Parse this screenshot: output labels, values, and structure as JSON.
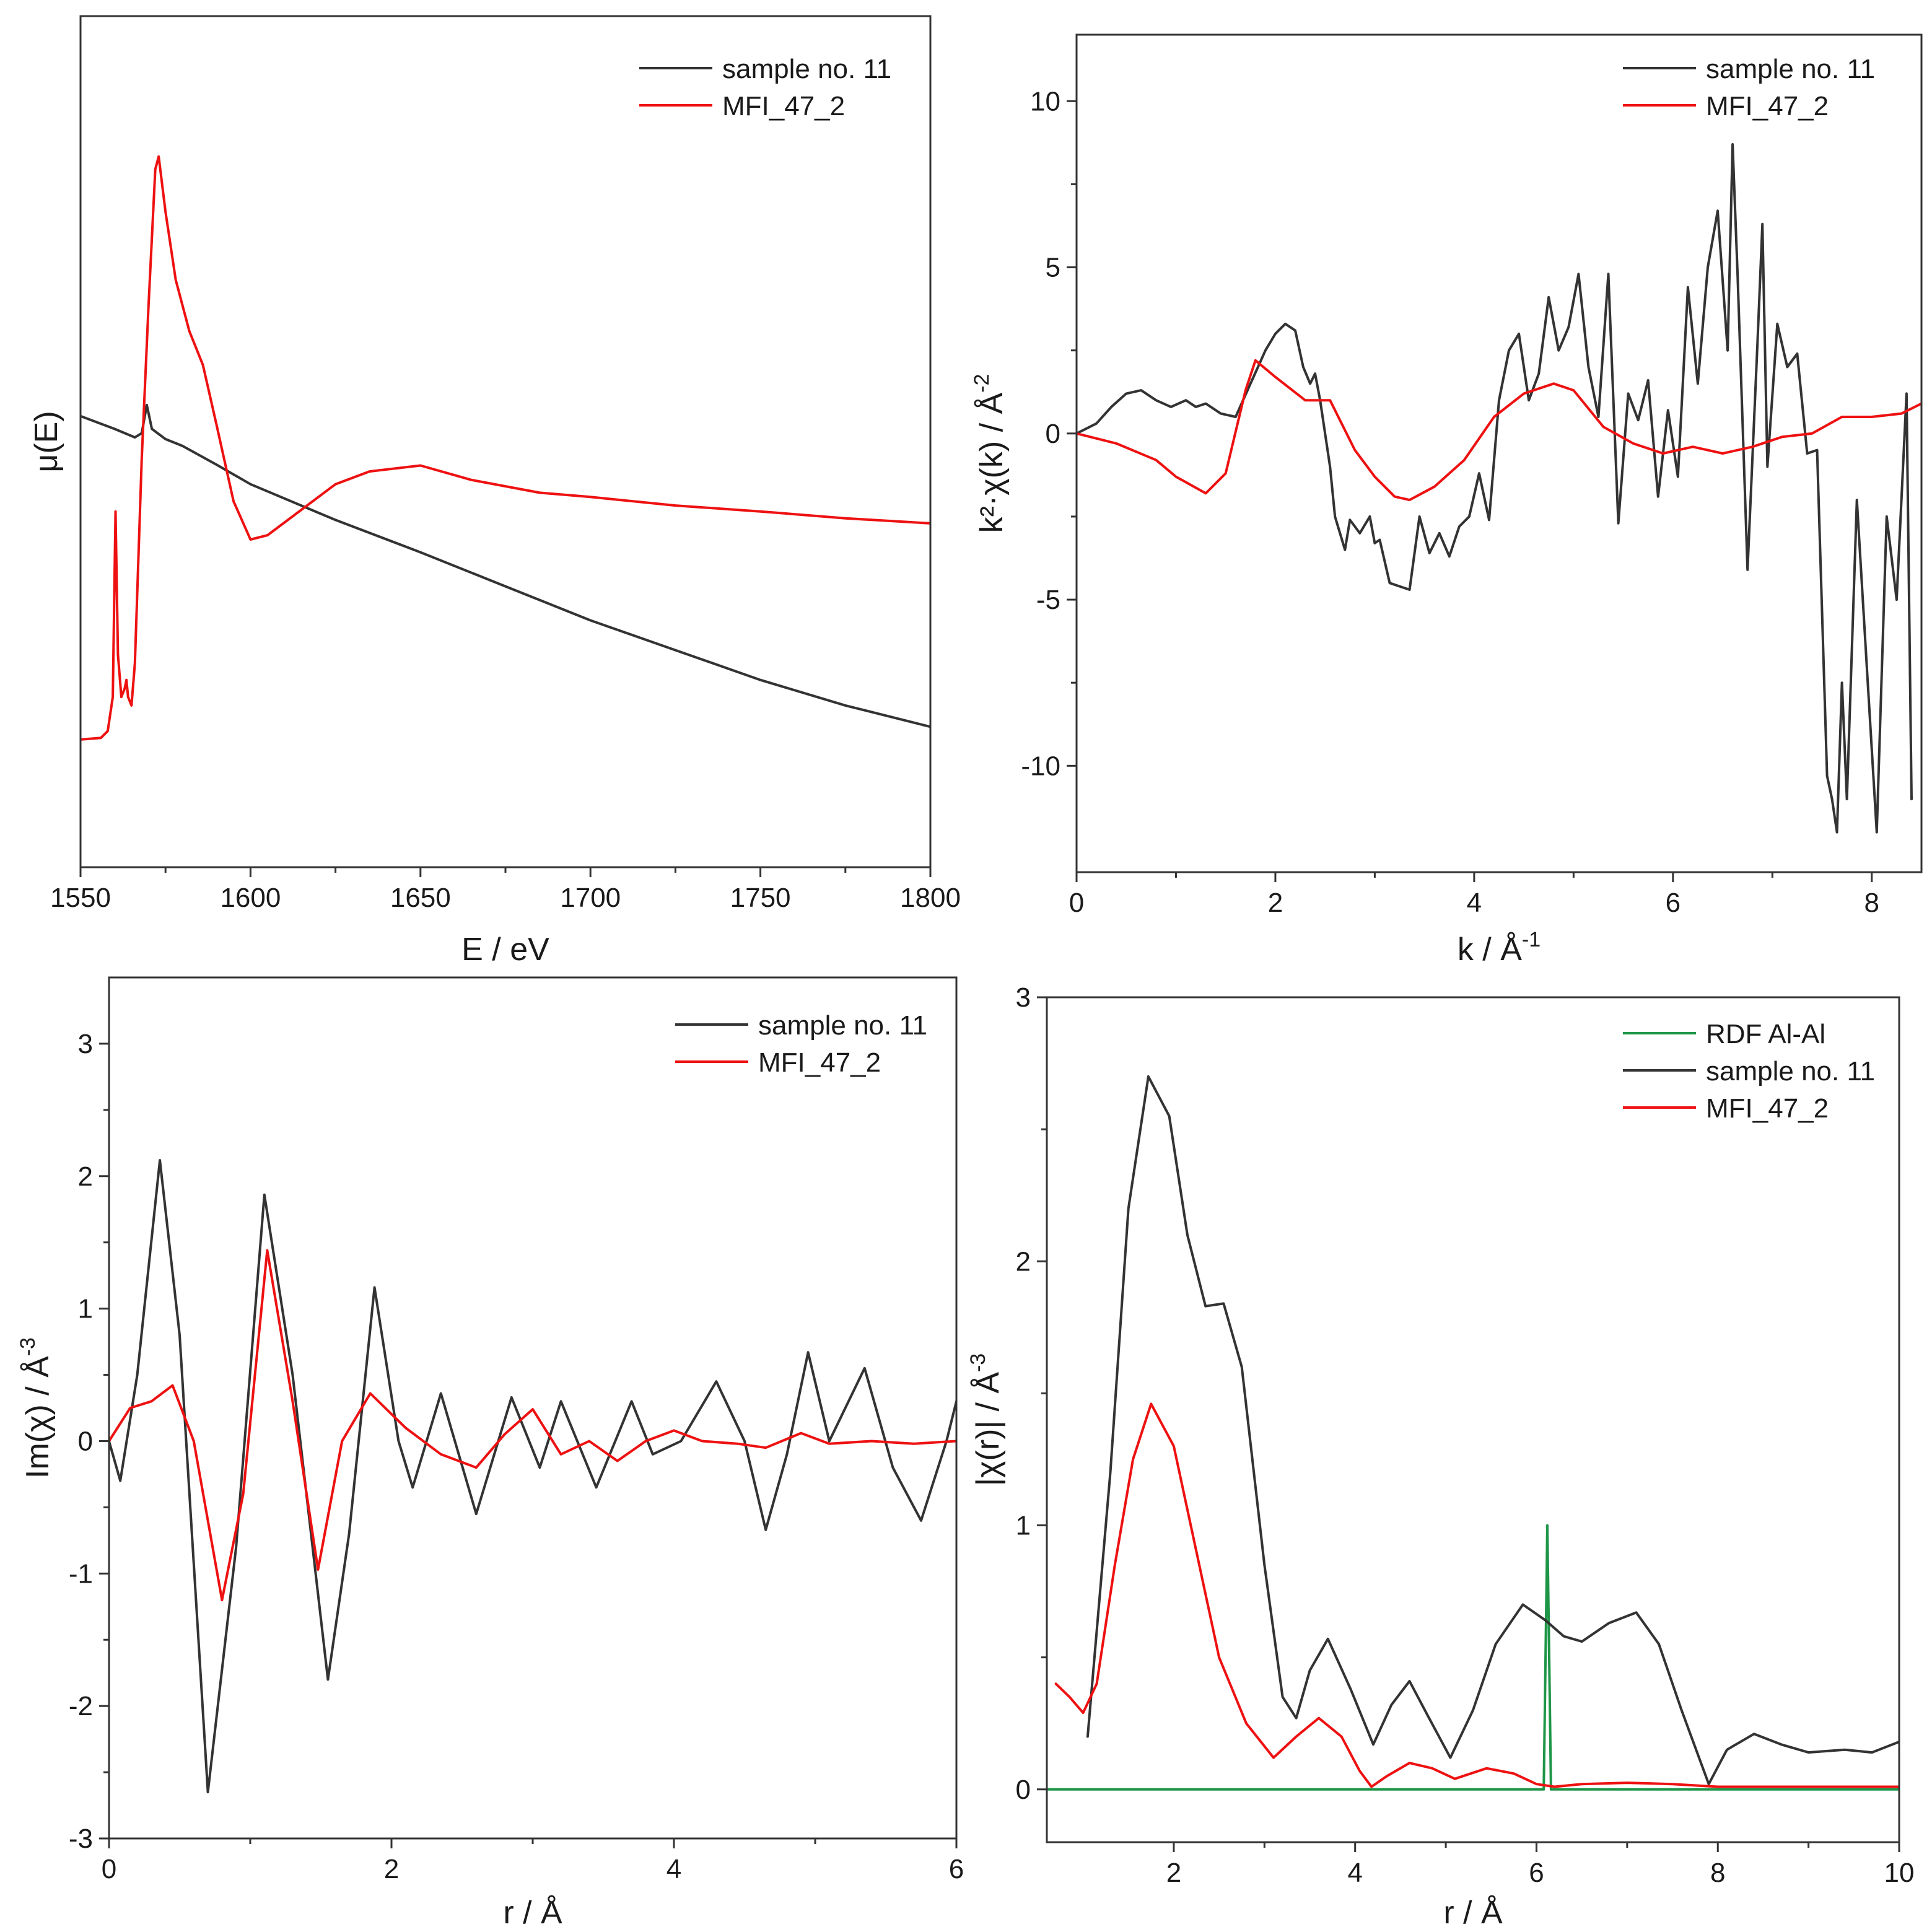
{
  "colors": {
    "sample": "#333333",
    "reference": "#ee1111",
    "rdf": "#1e9648",
    "axis": "#333333"
  },
  "chart_data": [
    {
      "id": "xanes",
      "type": "line",
      "title": "",
      "xlabel": "E / eV",
      "ylabel": "μ(E)",
      "xlim": [
        1550,
        1800
      ],
      "ylim": [
        0,
        1
      ],
      "xticks": [
        1550,
        1600,
        1650,
        1700,
        1750,
        1800
      ],
      "xtick_labels": [
        "1550",
        "1600",
        "1650",
        "1700",
        "1750",
        "1800"
      ],
      "yticks": [],
      "ytick_labels": [],
      "legend_position": "top-right",
      "series": [
        {
          "name": "sample no. 11",
          "color_key": "sample",
          "x": [
            1550,
            1560,
            1566,
            1568,
            1569.5,
            1571,
            1575,
            1580,
            1590,
            1600,
            1625,
            1650,
            1675,
            1700,
            1725,
            1750,
            1775,
            1800
          ],
          "y": [
            0.53,
            0.515,
            0.505,
            0.51,
            0.543,
            0.515,
            0.503,
            0.495,
            0.473,
            0.45,
            0.408,
            0.37,
            0.33,
            0.29,
            0.255,
            0.22,
            0.19,
            0.165
          ]
        },
        {
          "name": "MFI_47_2",
          "color_key": "reference",
          "x": [
            1550,
            1556,
            1558,
            1559.5,
            1560.3,
            1561,
            1562,
            1563,
            1563.5,
            1564,
            1565,
            1566,
            1567,
            1568,
            1570,
            1572,
            1573,
            1575,
            1578,
            1582,
            1586,
            1590,
            1595,
            1600,
            1605,
            1615,
            1625,
            1635,
            1650,
            1665,
            1685,
            1700,
            1725,
            1750,
            1775,
            1800
          ],
          "y": [
            0.15,
            0.152,
            0.16,
            0.2,
            0.418,
            0.25,
            0.2,
            0.21,
            0.22,
            0.2,
            0.19,
            0.24,
            0.36,
            0.48,
            0.66,
            0.82,
            0.835,
            0.77,
            0.69,
            0.63,
            0.59,
            0.52,
            0.43,
            0.385,
            0.39,
            0.42,
            0.45,
            0.465,
            0.472,
            0.455,
            0.44,
            0.435,
            0.425,
            0.418,
            0.41,
            0.404
          ]
        }
      ]
    },
    {
      "id": "exafs_k",
      "type": "line",
      "title": "",
      "xlabel": "k / Å",
      "xlabel_sup": "-1",
      "ylabel": "k²·χ(k) / Å",
      "ylabel_sup": "-2",
      "xlim": [
        0,
        8.5
      ],
      "ylim": [
        -13.2,
        12
      ],
      "xticks": [
        0,
        2,
        4,
        6,
        8
      ],
      "xtick_labels": [
        "0",
        "2",
        "4",
        "6",
        "8"
      ],
      "yticks": [
        -10,
        -5,
        0,
        5,
        10
      ],
      "ytick_labels": [
        "-10",
        "-5",
        "0",
        "5",
        "10"
      ],
      "legend_position": "top-right",
      "series": [
        {
          "name": "sample no. 11",
          "color_key": "sample",
          "x": [
            0,
            0.2,
            0.35,
            0.5,
            0.65,
            0.8,
            0.95,
            1.1,
            1.2,
            1.3,
            1.45,
            1.6,
            1.75,
            1.9,
            2.0,
            2.1,
            2.2,
            2.28,
            2.35,
            2.4,
            2.45,
            2.55,
            2.6,
            2.7,
            2.75,
            2.85,
            2.95,
            3.0,
            3.05,
            3.15,
            3.25,
            3.35,
            3.45,
            3.55,
            3.65,
            3.75,
            3.85,
            3.95,
            4.05,
            4.15,
            4.25,
            4.35,
            4.45,
            4.55,
            4.65,
            4.75,
            4.85,
            4.95,
            5.05,
            5.15,
            5.25,
            5.35,
            5.45,
            5.55,
            5.65,
            5.75,
            5.85,
            5.95,
            6.05,
            6.15,
            6.25,
            6.35,
            6.45,
            6.55,
            6.6,
            6.65,
            6.75,
            6.85,
            6.9,
            6.95,
            7.05,
            7.15,
            7.25,
            7.35,
            7.45,
            7.55,
            7.6,
            7.65,
            7.7,
            7.75,
            7.85,
            7.95,
            8.05,
            8.15,
            8.25,
            8.35,
            8.4
          ],
          "y": [
            0,
            0.3,
            0.8,
            1.2,
            1.3,
            1.0,
            0.8,
            1.0,
            0.8,
            0.9,
            0.6,
            0.5,
            1.5,
            2.5,
            3.0,
            3.3,
            3.1,
            2.0,
            1.5,
            1.8,
            1.0,
            -1.0,
            -2.5,
            -3.5,
            -2.6,
            -3.0,
            -2.5,
            -3.3,
            -3.2,
            -4.5,
            -4.6,
            -4.7,
            -2.5,
            -3.6,
            -3.0,
            -3.7,
            -2.8,
            -2.5,
            -1.2,
            -2.6,
            1.0,
            2.5,
            3.0,
            1.0,
            1.8,
            4.1,
            2.5,
            3.2,
            4.8,
            2.0,
            0.5,
            4.8,
            -2.7,
            1.2,
            0.4,
            1.6,
            -1.9,
            0.7,
            -1.3,
            4.4,
            1.5,
            5.0,
            6.7,
            2.5,
            8.7,
            4.8,
            -4.1,
            2.7,
            6.3,
            -1.0,
            3.3,
            2.0,
            2.4,
            -0.6,
            -0.5,
            -10.3,
            -11.0,
            -12.0,
            -7.5,
            -11.0,
            -2.0,
            -7.0,
            -12.0,
            -2.5,
            -5.0,
            1.2,
            -11.0
          ]
        },
        {
          "name": "MFI_47_2",
          "color_key": "reference",
          "x": [
            0,
            0.4,
            0.8,
            1.0,
            1.3,
            1.5,
            1.7,
            1.8,
            2.0,
            2.3,
            2.55,
            2.8,
            3.0,
            3.2,
            3.35,
            3.6,
            3.9,
            4.2,
            4.5,
            4.8,
            5.0,
            5.3,
            5.6,
            5.9,
            6.2,
            6.5,
            6.8,
            7.1,
            7.4,
            7.7,
            8.0,
            8.3,
            8.5
          ],
          "y": [
            0,
            -0.3,
            -0.8,
            -1.3,
            -1.8,
            -1.2,
            1.3,
            2.2,
            1.7,
            1.0,
            1.0,
            -0.5,
            -1.3,
            -1.9,
            -2.0,
            -1.6,
            -0.8,
            0.5,
            1.2,
            1.5,
            1.3,
            0.2,
            -0.3,
            -0.6,
            -0.4,
            -0.6,
            -0.4,
            -0.1,
            0.0,
            0.5,
            0.5,
            0.6,
            0.9
          ]
        }
      ]
    },
    {
      "id": "im_chi_r",
      "type": "line",
      "title": "",
      "xlabel": "r / Å",
      "ylabel": "Im(χ) / Å",
      "ylabel_sup": "-3",
      "xlim": [
        0,
        6
      ],
      "ylim": [
        -3,
        3.5
      ],
      "xticks": [
        0,
        2,
        4,
        6
      ],
      "xtick_labels": [
        "0",
        "2",
        "4",
        "6"
      ],
      "yticks": [
        -3,
        -2,
        -1,
        0,
        1,
        2,
        3
      ],
      "ytick_labels": [
        "-3",
        "-2",
        "-1",
        "0",
        "1",
        "2",
        "3"
      ],
      "legend_position": "top-right",
      "series": [
        {
          "name": "sample no. 11",
          "color_key": "sample",
          "x": [
            0,
            0.08,
            0.2,
            0.36,
            0.5,
            0.7,
            0.9,
            1.1,
            1.3,
            1.55,
            1.7,
            1.88,
            2.05,
            2.15,
            2.35,
            2.6,
            2.85,
            3.05,
            3.2,
            3.45,
            3.7,
            3.85,
            4.05,
            4.3,
            4.5,
            4.65,
            4.8,
            4.95,
            5.1,
            5.35,
            5.55,
            5.75,
            5.93,
            6.0
          ],
          "y": [
            0,
            -0.3,
            0.5,
            2.12,
            0.8,
            -2.65,
            -0.8,
            1.86,
            0.5,
            -1.8,
            -0.7,
            1.16,
            0.0,
            -0.35,
            0.36,
            -0.55,
            0.33,
            -0.2,
            0.3,
            -0.35,
            0.3,
            -0.1,
            0.0,
            0.45,
            0.0,
            -0.67,
            -0.1,
            0.67,
            0.0,
            0.55,
            -0.2,
            -0.6,
            0.0,
            0.3
          ]
        },
        {
          "name": "MFI_47_2",
          "color_key": "reference",
          "x": [
            0,
            0.15,
            0.3,
            0.45,
            0.6,
            0.8,
            0.95,
            1.12,
            1.3,
            1.48,
            1.65,
            1.85,
            2.1,
            2.35,
            2.6,
            2.8,
            3.0,
            3.2,
            3.4,
            3.6,
            3.8,
            4.0,
            4.2,
            4.45,
            4.65,
            4.9,
            5.1,
            5.4,
            5.7,
            6.0
          ],
          "y": [
            0,
            0.25,
            0.3,
            0.42,
            0.0,
            -1.2,
            -0.4,
            1.44,
            0.3,
            -0.97,
            0.0,
            0.36,
            0.1,
            -0.1,
            -0.2,
            0.05,
            0.24,
            -0.1,
            0.0,
            -0.15,
            0.0,
            0.08,
            0.0,
            -0.02,
            -0.05,
            0.06,
            -0.02,
            0.0,
            -0.02,
            0.0
          ]
        }
      ]
    },
    {
      "id": "abs_chi_r",
      "type": "line",
      "title": "",
      "xlabel": "r / Å",
      "ylabel": "|χ(r)| / Å",
      "ylabel_sup": "-3",
      "xlim": [
        0.6,
        10
      ],
      "ylim": [
        -0.2,
        3
      ],
      "xticks": [
        2,
        4,
        6,
        8,
        10
      ],
      "xtick_labels": [
        "2",
        "4",
        "6",
        "8",
        "10"
      ],
      "yticks": [
        0,
        1,
        2,
        3
      ],
      "ytick_labels": [
        "0",
        "1",
        "2",
        "3"
      ],
      "legend_position": "top-right",
      "series": [
        {
          "name": "RDF Al-Al",
          "color_key": "rdf",
          "x": [
            0.6,
            6.08,
            6.1,
            6.12,
            6.14,
            6.16,
            10
          ],
          "y": [
            0,
            0,
            0.5,
            1.0,
            0.5,
            0,
            0
          ]
        },
        {
          "name": "sample no. 11",
          "color_key": "sample",
          "x": [
            1.05,
            1.3,
            1.5,
            1.72,
            1.95,
            2.15,
            2.35,
            2.55,
            2.75,
            3.0,
            3.2,
            3.35,
            3.5,
            3.7,
            3.95,
            4.2,
            4.4,
            4.6,
            4.8,
            5.05,
            5.3,
            5.55,
            5.85,
            6.1,
            6.3,
            6.5,
            6.8,
            7.1,
            7.35,
            7.6,
            7.9,
            8.1,
            8.4,
            8.7,
            9.0,
            9.4,
            9.7,
            10.0
          ],
          "y": [
            0.2,
            1.2,
            2.2,
            2.7,
            2.55,
            2.1,
            1.83,
            1.84,
            1.6,
            0.85,
            0.35,
            0.27,
            0.45,
            0.57,
            0.38,
            0.17,
            0.32,
            0.41,
            0.28,
            0.12,
            0.3,
            0.55,
            0.7,
            0.64,
            0.58,
            0.56,
            0.63,
            0.67,
            0.55,
            0.3,
            0.02,
            0.15,
            0.21,
            0.17,
            0.14,
            0.15,
            0.14,
            0.18
          ]
        },
        {
          "name": "MFI_47_2",
          "color_key": "reference",
          "x": [
            0.7,
            0.85,
            1.0,
            1.15,
            1.35,
            1.55,
            1.75,
            2.0,
            2.25,
            2.5,
            2.8,
            3.1,
            3.35,
            3.6,
            3.85,
            4.05,
            4.18,
            4.35,
            4.6,
            4.85,
            5.1,
            5.45,
            5.75,
            6.0,
            6.2,
            6.5,
            7.0,
            7.5,
            8.0,
            8.5,
            9.0,
            9.5,
            10.0
          ],
          "y": [
            0.4,
            0.35,
            0.29,
            0.4,
            0.85,
            1.25,
            1.46,
            1.3,
            0.9,
            0.5,
            0.25,
            0.12,
            0.2,
            0.27,
            0.2,
            0.07,
            0.01,
            0.05,
            0.1,
            0.08,
            0.04,
            0.08,
            0.06,
            0.02,
            0.01,
            0.02,
            0.025,
            0.02,
            0.01,
            0.01,
            0.01,
            0.01,
            0.01
          ]
        }
      ]
    }
  ]
}
